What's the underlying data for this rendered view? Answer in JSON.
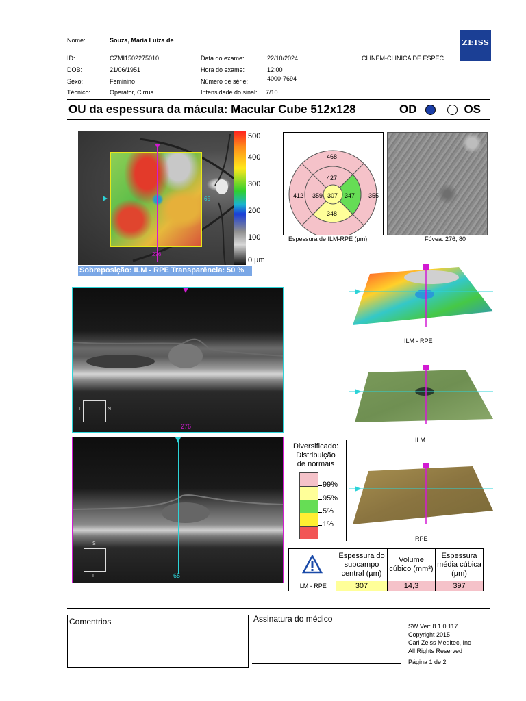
{
  "header": {
    "nome_label": "Nome:",
    "nome": "Souza, Maria Luiza de",
    "id_label": "ID:",
    "id": "CZMI1502275010",
    "dob_label": "DOB:",
    "dob": "21/06/1951",
    "sexo_label": "Sexo:",
    "sexo": "Feminino",
    "tecnico_label": "Técnico:",
    "tecnico": "Operator, Cirrus",
    "data_label": "Data do exame:",
    "data": "22/10/2024",
    "hora_label": "Hora do exame:",
    "hora": "12:00",
    "serie_label": "Número de série:",
    "serie": "4000-7694",
    "sinal_label": "Intensidade do sinal:",
    "sinal": "7/10",
    "clinic": "CLINEM-CLINICA DE ESPEC",
    "logo": "ZEISS"
  },
  "title": {
    "text": "OU da espessura da mácula: Macular Cube 512x128",
    "od": "OD",
    "os": "OS"
  },
  "fundus": {
    "scale": [
      "500",
      "400",
      "300",
      "200",
      "100",
      "0 µm"
    ],
    "marker_bottom": "276",
    "marker_right": "65",
    "overlay_caption": "Sobreposição: ILM - RPE  Transparência: 50 %"
  },
  "etdrs": {
    "outer_top": "468",
    "inner_top": "427",
    "outer_left": "412",
    "inner_left": "359",
    "center": "307",
    "inner_right": "347",
    "outer_right": "355",
    "inner_bottom": "348",
    "caption": "Espessura de ILM-RPE (µm)"
  },
  "fovea": {
    "caption": "Fóvea: 276, 80"
  },
  "bscan1": {
    "marker": "276",
    "t": "T",
    "n": "N"
  },
  "bscan2": {
    "marker": "65",
    "s": "S",
    "i": "I"
  },
  "renders": {
    "r1": "ILM - RPE",
    "r2": "ILM",
    "r3": "RPE"
  },
  "legend": {
    "title1": "Diversificado:",
    "title2": "Distribuição",
    "title3": "de normais",
    "p99": "99%",
    "p95": "95%",
    "p5": "5%",
    "p1": "1%",
    "colors": {
      "c99": "#f5c2c9",
      "c95": "#ffff99",
      "c5": "#66dd55",
      "c1": "#ffee33",
      "cbelow": "#f25555"
    }
  },
  "results": {
    "h1": "Espessura do subcampo central (µm)",
    "h2": "Volume cúbico (mm³)",
    "h3": "Espessura média cúbica (µm)",
    "row_label": "ILM - RPE",
    "v1": "307",
    "v2": "14,3",
    "v3": "397"
  },
  "footer": {
    "comments": "Comentrios",
    "signature": "Assinatura do médico",
    "sw": "SW Ver: 8.1.0.117",
    "copyright": "Copyright 2015",
    "company": "Carl Zeiss Meditec, Inc",
    "rights": "All Rights Reserved",
    "page": "Página 1 de 2"
  }
}
